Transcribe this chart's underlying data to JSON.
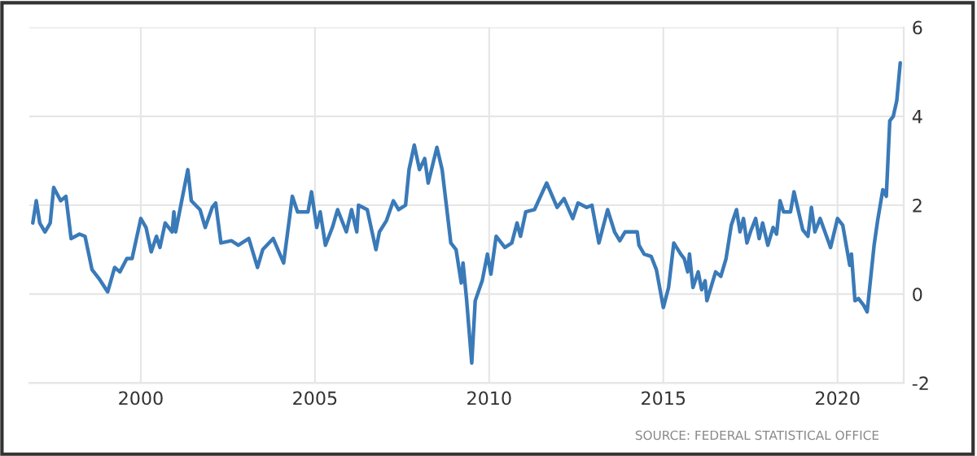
{
  "chart_data": {
    "type": "line",
    "annotations": [
      "SOURCE: FEDERAL STATISTICAL OFFICE"
    ],
    "x": [
      1996.9,
      1997.0,
      1997.1,
      1997.25,
      1997.4,
      1997.5,
      1997.7,
      1997.85,
      1998.0,
      1998.24,
      1998.4,
      1998.6,
      1998.8,
      1999.05,
      1999.25,
      1999.4,
      1999.6,
      1999.75,
      2000.0,
      2000.15,
      2000.3,
      2000.45,
      2000.55,
      2000.7,
      2000.9,
      2000.95,
      2001.0,
      2001.15,
      2001.35,
      2001.45,
      2001.7,
      2001.85,
      2002.05,
      2002.15,
      2002.3,
      2002.6,
      2002.8,
      2003.1,
      2003.35,
      2003.5,
      2003.8,
      2004.1,
      2004.35,
      2004.5,
      2004.8,
      2004.9,
      2005.05,
      2005.15,
      2005.3,
      2005.5,
      2005.65,
      2005.9,
      2006.05,
      2006.2,
      2006.25,
      2006.5,
      2006.75,
      2006.85,
      2007.05,
      2007.25,
      2007.4,
      2007.6,
      2007.7,
      2007.85,
      2008.0,
      2008.15,
      2008.25,
      2008.5,
      2008.65,
      2008.9,
      2009.05,
      2009.2,
      2009.25,
      2009.35,
      2009.5,
      2009.6,
      2009.8,
      2009.95,
      2010.05,
      2010.2,
      2010.35,
      2010.45,
      2010.65,
      2010.8,
      2010.9,
      2011.05,
      2011.3,
      2011.65,
      2011.95,
      2012.15,
      2012.4,
      2012.55,
      2012.8,
      2012.95,
      2013.15,
      2013.4,
      2013.6,
      2013.75,
      2013.9,
      2014.0,
      2014.25,
      2014.3,
      2014.45,
      2014.65,
      2014.8,
      2015.0,
      2015.15,
      2015.3,
      2015.5,
      2015.6,
      2015.7,
      2015.75,
      2015.85,
      2016.0,
      2016.1,
      2016.2,
      2016.25,
      2016.5,
      2016.65,
      2016.8,
      2016.95,
      2017.1,
      2017.2,
      2017.3,
      2017.4,
      2017.5,
      2017.65,
      2017.75,
      2017.85,
      2018.0,
      2018.15,
      2018.25,
      2018.35,
      2018.45,
      2018.65,
      2018.75,
      2019.0,
      2019.15,
      2019.25,
      2019.35,
      2019.5,
      2019.8,
      2020.0,
      2020.15,
      2020.35,
      2020.4,
      2020.5,
      2020.6,
      2020.75,
      2020.85,
      2021.05,
      2021.15,
      2021.3,
      2021.4,
      2021.5,
      2021.6,
      2021.7,
      2021.8
    ],
    "series": [
      {
        "color": "#3a7ab8",
        "values": [
          1.6,
          2.1,
          1.6,
          1.4,
          1.6,
          2.4,
          2.1,
          2.2,
          1.25,
          1.35,
          1.3,
          0.55,
          0.35,
          0.05,
          0.6,
          0.5,
          0.8,
          0.8,
          1.7,
          1.5,
          0.95,
          1.3,
          1.05,
          1.6,
          1.4,
          1.85,
          1.4,
          2.0,
          2.8,
          2.1,
          1.9,
          1.5,
          1.95,
          2.05,
          1.15,
          1.2,
          1.1,
          1.25,
          0.6,
          1.0,
          1.25,
          0.7,
          2.2,
          1.85,
          1.85,
          2.3,
          1.5,
          1.85,
          1.1,
          1.5,
          1.9,
          1.4,
          1.9,
          1.4,
          2.0,
          1.9,
          1.0,
          1.4,
          1.65,
          2.1,
          1.9,
          2.0,
          2.8,
          3.35,
          2.8,
          3.05,
          2.5,
          3.3,
          2.8,
          1.15,
          1.0,
          0.25,
          0.7,
          -0.1,
          -1.55,
          -0.15,
          0.3,
          0.9,
          0.45,
          1.3,
          1.15,
          1.05,
          1.15,
          1.6,
          1.3,
          1.85,
          1.9,
          2.5,
          1.95,
          2.15,
          1.7,
          2.05,
          1.95,
          2.0,
          1.15,
          1.9,
          1.4,
          1.2,
          1.4,
          1.4,
          1.4,
          1.1,
          0.9,
          0.85,
          0.55,
          -0.3,
          0.15,
          1.15,
          0.9,
          0.8,
          0.5,
          0.9,
          0.15,
          0.5,
          0.1,
          0.3,
          -0.15,
          0.5,
          0.4,
          0.8,
          1.55,
          1.9,
          1.4,
          1.7,
          1.15,
          1.4,
          1.7,
          1.25,
          1.6,
          1.1,
          1.5,
          1.35,
          2.1,
          1.85,
          1.85,
          2.3,
          1.45,
          1.3,
          1.95,
          1.4,
          1.7,
          1.05,
          1.7,
          1.55,
          0.65,
          0.9,
          -0.15,
          -0.1,
          -0.25,
          -0.4,
          1.1,
          1.65,
          2.35,
          2.2,
          3.9,
          4.0,
          4.35,
          5.2
        ]
      }
    ],
    "xlim": [
      1996.8,
      2021.9
    ],
    "xticks": [
      2000,
      2005,
      2010,
      2015,
      2020
    ],
    "ylim": [
      -2,
      6
    ],
    "yticks": [
      -2,
      0,
      2,
      4,
      6
    ],
    "grid": true,
    "legend": false,
    "marker": "none",
    "line_style": "solid"
  }
}
